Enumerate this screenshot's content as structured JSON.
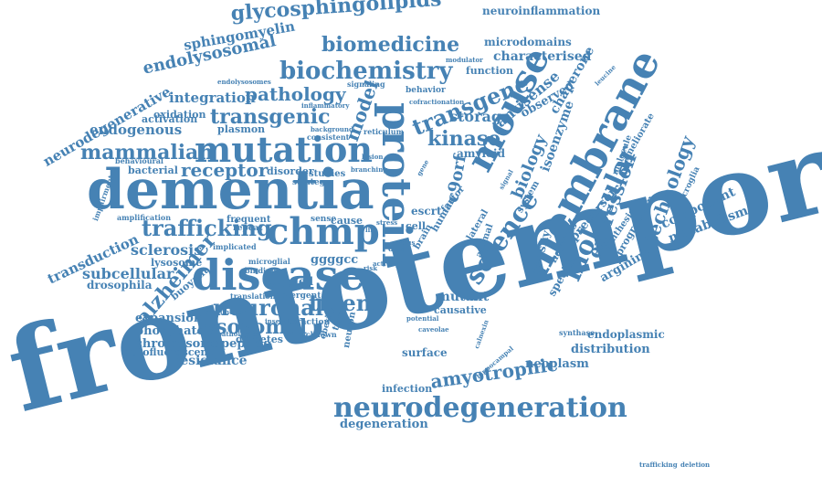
{
  "accent_color": "#4682b4",
  "background_color": "#ffffff",
  "words": [
    "frontotemporal",
    "dementia",
    "disease",
    "mutation",
    "protein",
    "mouse",
    "membrane",
    "neurodegeneration",
    "chmp",
    "molecular",
    "science",
    "biochemistry",
    "biomedicine",
    "glycosphingolipids",
    "trafficking",
    "transgenic",
    "transgene",
    "kinase",
    "pathology",
    "neuronal",
    "lysosomal",
    "alzheimer",
    "tmem",
    "expression",
    "technology",
    "biology",
    "mammalian",
    "endolysosomal",
    "sphingomyelin",
    "receptor",
    "c9orf",
    "amyotrophic",
    "model",
    "storage",
    "characterised",
    "integration",
    "endogenous",
    "neurodegenerative",
    "neuroinflammation",
    "microdomains",
    "antisense",
    "chaperone",
    "isoenzyme",
    "observed",
    "sclerosis",
    "subcellular",
    "transduction",
    "degeneration",
    "endoplasmic",
    "neoplasm",
    "distribution",
    "metabolism",
    "component",
    "arginine",
    "precursor",
    "density",
    "specific",
    "mutant",
    "causative",
    "resistance",
    "chromosome",
    "autofluorescent",
    "phosphate",
    "expansion",
    "dipeptide",
    "diabetes",
    "surface",
    "infection",
    "drosophila",
    "buoyant",
    "lysosome",
    "bacterial",
    "oxidation",
    "activation",
    "plasmon",
    "behavioural",
    "coupled",
    "ggggcc",
    "trafficking",
    "cell",
    "brain",
    "human",
    "factor",
    "animal",
    "lateral",
    "nervous",
    "system",
    "amyloid",
    "escrt",
    "repeat",
    "frequent",
    "disorder",
    "studies",
    "amplification",
    "impairment",
    "function",
    "behavior",
    "modulator",
    "signaling",
    "inflammatory",
    "background",
    "consistent",
    "strategy",
    "reticulum",
    "translation",
    "detergent",
    "microglial",
    "binding",
    "implicated",
    "insertion",
    "interaction",
    "knockdown",
    "obesity",
    "tissue",
    "neuron",
    "sense",
    "cause",
    "data",
    "calnexin",
    "hippocampal",
    "synthase",
    "progranulin",
    "synthesis",
    "molecule",
    "ameliorate",
    "dysfunction",
    "pathologies",
    "endolysosomes",
    "microglia",
    "potential",
    "risk",
    "activity",
    "caveolae",
    "virus",
    "life",
    "stress",
    "gene",
    "signal",
    "leucine",
    "cofractionation",
    "branching",
    "lesion",
    "deletion"
  ]
}
